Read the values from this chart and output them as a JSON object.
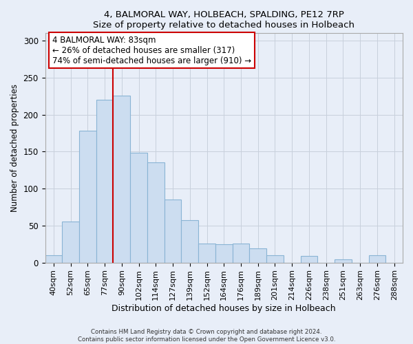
{
  "title1": "4, BALMORAL WAY, HOLBEACH, SPALDING, PE12 7RP",
  "title2": "Size of property relative to detached houses in Holbeach",
  "xlabel": "Distribution of detached houses by size in Holbeach",
  "ylabel": "Number of detached properties",
  "bar_color": "#ccddf0",
  "bar_edge_color": "#89b4d4",
  "bar_labels": [
    "40sqm",
    "52sqm",
    "65sqm",
    "77sqm",
    "90sqm",
    "102sqm",
    "114sqm",
    "127sqm",
    "139sqm",
    "152sqm",
    "164sqm",
    "176sqm",
    "189sqm",
    "201sqm",
    "214sqm",
    "226sqm",
    "238sqm",
    "251sqm",
    "263sqm",
    "276sqm",
    "288sqm"
  ],
  "bar_values": [
    10,
    55,
    178,
    220,
    226,
    148,
    135,
    85,
    57,
    26,
    25,
    26,
    19,
    10,
    0,
    9,
    0,
    4,
    0,
    10,
    0
  ],
  "vline_color": "#cc0000",
  "annotation_title": "4 BALMORAL WAY: 83sqm",
  "annotation_line1": "← 26% of detached houses are smaller (317)",
  "annotation_line2": "74% of semi-detached houses are larger (910) →",
  "annotation_box_color": "#ffffff",
  "annotation_box_edge": "#cc0000",
  "ylim": [
    0,
    310
  ],
  "yticks": [
    0,
    50,
    100,
    150,
    200,
    250,
    300
  ],
  "footer1": "Contains HM Land Registry data © Crown copyright and database right 2024.",
  "footer2": "Contains public sector information licensed under the Open Government Licence v3.0.",
  "fig_background": "#e8eef8",
  "plot_background": "#e8eef8",
  "grid_color": "#c8d0dc"
}
